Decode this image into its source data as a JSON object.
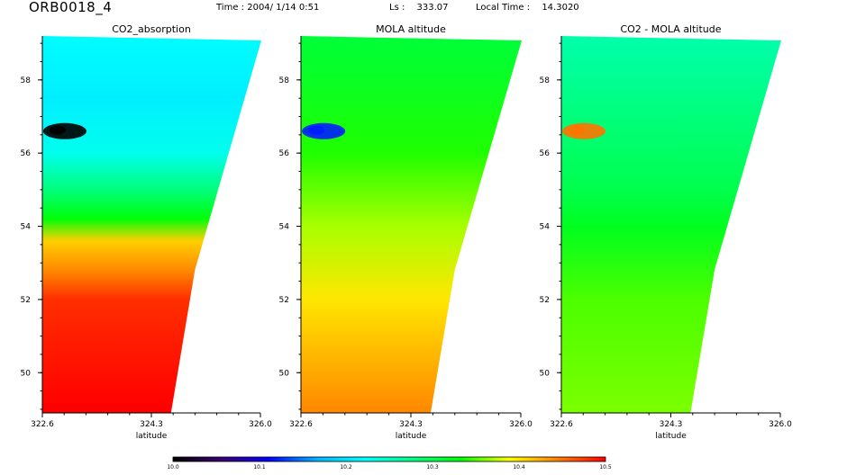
{
  "header": {
    "orbit_id": "ORB0018_4",
    "time_label": "Time :",
    "time_value": "2004/ 1/14  0:51",
    "ls_label": "Ls :",
    "ls_value": "333.07",
    "local_time_label": "Local Time :",
    "local_time_value": "14.3020"
  },
  "chart_data": [
    {
      "type": "heatmap",
      "title": "CO2_absorption",
      "xlabel": "latitude",
      "ylabel": "",
      "x_ticks": [
        "322.6",
        "324.3",
        "326.0"
      ],
      "y_ticks": [
        "58",
        "56",
        "54",
        "52",
        "50"
      ],
      "xlim": [
        322.6,
        326.0
      ],
      "ylim": [
        48.9,
        59.2
      ],
      "color_by_latitude": [
        {
          "lat": 59.0,
          "value": 10.22
        },
        {
          "lat": 57.5,
          "value": 10.21
        },
        {
          "lat": 56.0,
          "value": 10.23
        },
        {
          "lat": 55.0,
          "value": 10.28
        },
        {
          "lat": 54.2,
          "value": 10.33
        },
        {
          "lat": 53.6,
          "value": 10.41
        },
        {
          "lat": 52.8,
          "value": 10.44
        },
        {
          "lat": 52.0,
          "value": 10.48
        },
        {
          "lat": 49.0,
          "value": 10.5
        }
      ],
      "feature": {
        "lon": 322.95,
        "lat": 56.6,
        "value": 10.0
      }
    },
    {
      "type": "heatmap",
      "title": "MOLA altitude",
      "xlabel": "latitude",
      "ylabel": "",
      "x_ticks": [
        "322.6",
        "324.3",
        "326.0"
      ],
      "y_ticks": [
        "58",
        "56",
        "54",
        "52",
        "50"
      ],
      "xlim": [
        322.6,
        326.0
      ],
      "ylim": [
        48.9,
        59.2
      ],
      "color_by_latitude": [
        {
          "lat": 59.0,
          "value": 10.31
        },
        {
          "lat": 56.0,
          "value": 10.34
        },
        {
          "lat": 54.0,
          "value": 10.37
        },
        {
          "lat": 52.0,
          "value": 10.4
        },
        {
          "lat": 49.0,
          "value": 10.44
        }
      ],
      "feature": {
        "lon": 322.95,
        "lat": 56.6,
        "value": 10.12
      }
    },
    {
      "type": "heatmap",
      "title": "CO2 - MOLA altitude",
      "xlabel": "latitude",
      "ylabel": "",
      "x_ticks": [
        "322.6",
        "324.3",
        "326.0"
      ],
      "y_ticks": [
        "58",
        "56",
        "54",
        "52",
        "50"
      ],
      "xlim": [
        322.6,
        326.0
      ],
      "ylim": [
        48.9,
        59.2
      ],
      "color_by_latitude": [
        {
          "lat": 59.0,
          "value": 10.26
        },
        {
          "lat": 57.0,
          "value": 10.28
        },
        {
          "lat": 55.0,
          "value": 10.3
        },
        {
          "lat": 54.0,
          "value": 10.32
        },
        {
          "lat": 52.0,
          "value": 10.35
        },
        {
          "lat": 49.0,
          "value": 10.36
        }
      ],
      "feature": {
        "lon": 322.95,
        "lat": 56.6,
        "value": 10.45
      }
    }
  ],
  "colorbar": {
    "min": 10.0,
    "max": 10.5,
    "tick_labels": [
      "10.0",
      "10.1",
      "10.2",
      "10.3",
      "10.4",
      "10.5"
    ],
    "colors": [
      "#000000",
      "#3a0070",
      "#0000ff",
      "#00b4ff",
      "#00ffff",
      "#00ff80",
      "#00ff00",
      "#ffff00",
      "#ff8000",
      "#ff0000"
    ]
  }
}
